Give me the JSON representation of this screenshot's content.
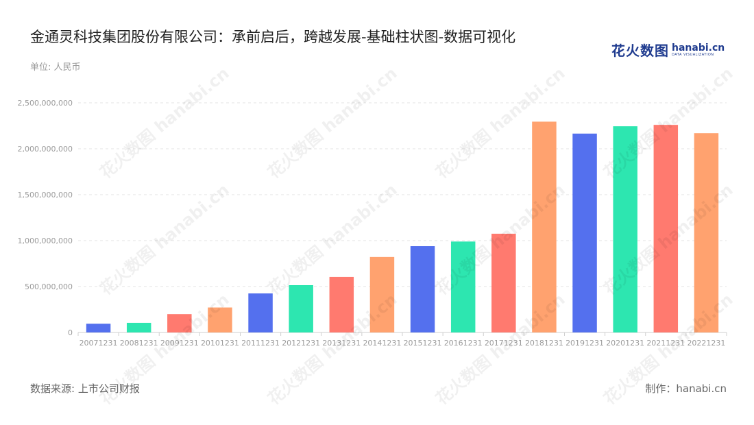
{
  "title": "金通灵科技集团股份有限公司：承前启后，跨越发展-基础柱状图-数据可视化",
  "unit": "单位: 人民币",
  "logo": {
    "cn": "花火数图",
    "en": "hanabi.cn",
    "sub": "DATA VISUALIZATION"
  },
  "footer": {
    "source": "数据来源: 上市公司财报",
    "maker": "制作：hanabi.cn"
  },
  "watermark": "花火数图 hanabi.cn",
  "chart_data": {
    "type": "bar",
    "title": "金通灵科技集团股份有限公司：承前启后，跨越发展-基础柱状图-数据可视化",
    "ylabel": "单位: 人民币",
    "categories": [
      "20071231",
      "20081231",
      "20091231",
      "20101231",
      "20111231",
      "20121231",
      "20131231",
      "20141231",
      "20151231",
      "20161231",
      "20171231",
      "20181231",
      "20191231",
      "20201231",
      "20211231",
      "20221231"
    ],
    "values": [
      95000000,
      105000000,
      200000000,
      272000000,
      425000000,
      515000000,
      605000000,
      822000000,
      940000000,
      990000000,
      1075000000,
      2295000000,
      2165000000,
      2245000000,
      2260000000,
      2170000000
    ],
    "colors": [
      "#5470ee",
      "#2de6b0",
      "#ff7a6f",
      "#ffa26f"
    ],
    "yticks": [
      "0",
      "500,000,000",
      "1,000,000,000",
      "1,500,000,000",
      "2,000,000,000",
      "2,500,000,000"
    ],
    "ylim": [
      0,
      2500000000
    ],
    "grid": true,
    "legend": "none"
  }
}
